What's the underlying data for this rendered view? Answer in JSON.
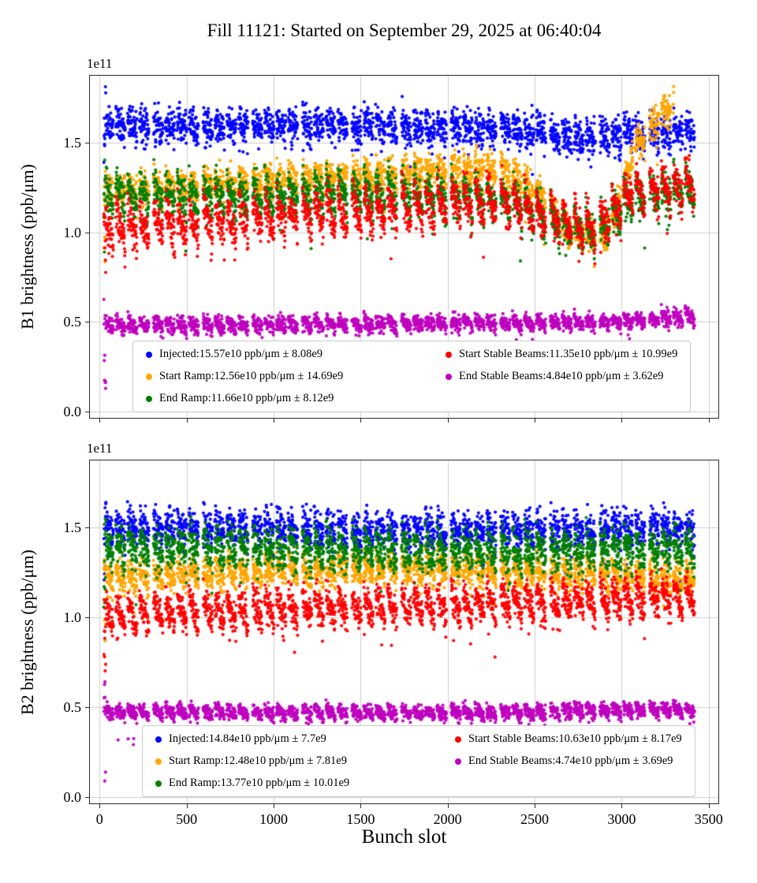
{
  "title": "Fill 11121: Started on September 29, 2025 at 06:40:04",
  "xlabel": "Bunch slot",
  "offset_text": "1e11",
  "chart_data": [
    {
      "type": "scatter",
      "name": "B1",
      "ylabel": "B1 brightness (ppb/μm)",
      "xlim": [
        -60,
        3560
      ],
      "ylim": [
        -0.04,
        1.88
      ],
      "x_ticks": [
        0,
        500,
        1000,
        1500,
        2000,
        2500,
        3000,
        3500
      ],
      "y_ticks": [
        0,
        0.5,
        1,
        1.5
      ],
      "show_x_tick_labels": false,
      "grid": true,
      "units_scale": "1e11",
      "trains": {
        "groups": 12,
        "group_start": 25,
        "group_pitch": 285,
        "subtrains": 4,
        "sub_pitch": 68,
        "bunches": 48,
        "slot_step": 1.15
      },
      "series": [
        {
          "name": "Injected",
          "label": "Injected:15.57e10 ppb/μm ± 8.08e9",
          "color": "#0000ff",
          "mean_e10": 15.57,
          "sigma_e9": 8.08,
          "profile": [
            [
              0,
              1.6
            ],
            [
              1000,
              1.6
            ],
            [
              2000,
              1.58
            ],
            [
              2500,
              1.57
            ],
            [
              2800,
              1.52
            ],
            [
              3000,
              1.55
            ],
            [
              3440,
              1.57
            ]
          ],
          "noise": 0.05,
          "saw": 0.05
        },
        {
          "name": "Start Ramp",
          "label": "Start Ramp:12.56e10 ppb/μm ± 14.69e9",
          "color": "#ffa500",
          "mean_e10": 12.56,
          "sigma_e9": 14.69,
          "x_max": 3300,
          "profile": [
            [
              0,
              1.22
            ],
            [
              600,
              1.27
            ],
            [
              1400,
              1.31
            ],
            [
              2300,
              1.36
            ],
            [
              2550,
              1.2
            ],
            [
              2700,
              1.0
            ],
            [
              2900,
              0.97
            ],
            [
              3000,
              1.2
            ],
            [
              3080,
              1.5
            ],
            [
              3290,
              1.72
            ]
          ],
          "noise": 0.045,
          "saw": 0.06
        },
        {
          "name": "End Ramp",
          "label": "End Ramp:11.66e10 ppb/μm ± 8.12e9",
          "color": "#008000",
          "mean_e10": 11.66,
          "sigma_e9": 8.12,
          "profile": [
            [
              0,
              1.22
            ],
            [
              800,
              1.2
            ],
            [
              1600,
              1.22
            ],
            [
              2400,
              1.18
            ],
            [
              2600,
              1.05
            ],
            [
              2850,
              1.0
            ],
            [
              3050,
              1.18
            ],
            [
              3440,
              1.25
            ]
          ],
          "noise": 0.05,
          "saw": 0.14
        },
        {
          "name": "Start Stable Beams",
          "label": "Start Stable Beams:11.35e10 ppb/μm ± 10.99e9",
          "color": "#ff0000",
          "mean_e10": 11.35,
          "sigma_e9": 10.99,
          "profile": [
            [
              0,
              1.02
            ],
            [
              700,
              1.07
            ],
            [
              1500,
              1.12
            ],
            [
              2300,
              1.18
            ],
            [
              2600,
              1.08
            ],
            [
              2850,
              1.02
            ],
            [
              3050,
              1.22
            ],
            [
              3440,
              1.27
            ]
          ],
          "noise": 0.05,
          "saw": 0.18
        },
        {
          "name": "End Stable Beams",
          "label": "End Stable Beams:4.84e10 ppb/μm ± 3.62e9",
          "color": "#bf00bf",
          "mean_e10": 4.84,
          "sigma_e9": 3.62,
          "profile": [
            [
              0,
              0.48
            ],
            [
              1500,
              0.49
            ],
            [
              3000,
              0.5
            ],
            [
              3440,
              0.53
            ]
          ],
          "noise": 0.022,
          "saw": 0.04
        }
      ]
    },
    {
      "type": "scatter",
      "name": "B2",
      "ylabel": "B2 brightness (ppb/μm)",
      "xlim": [
        -60,
        3560
      ],
      "ylim": [
        -0.04,
        1.88
      ],
      "x_ticks": [
        0,
        500,
        1000,
        1500,
        2000,
        2500,
        3000,
        3500
      ],
      "y_ticks": [
        0,
        0.5,
        1,
        1.5
      ],
      "show_x_tick_labels": true,
      "grid": true,
      "units_scale": "1e11",
      "trains": {
        "groups": 12,
        "group_start": 25,
        "group_pitch": 285,
        "subtrains": 4,
        "sub_pitch": 68,
        "bunches": 48,
        "slot_step": 1.15
      },
      "series": [
        {
          "name": "Injected",
          "label": "Injected:14.84e10 ppb/μm ± 7.7e9",
          "color": "#0000ff",
          "mean_e10": 14.84,
          "sigma_e9": 7.7,
          "profile": [
            [
              0,
              1.5
            ],
            [
              1000,
              1.5
            ],
            [
              2000,
              1.48
            ],
            [
              3440,
              1.5
            ]
          ],
          "noise": 0.05,
          "saw": 0.06
        },
        {
          "name": "Start Ramp",
          "label": "Start Ramp:12.48e10 ppb/μm ± 7.81e9",
          "color": "#ffa500",
          "mean_e10": 12.48,
          "sigma_e9": 7.81,
          "profile": [
            [
              0,
              1.22
            ],
            [
              1000,
              1.26
            ],
            [
              2000,
              1.27
            ],
            [
              3440,
              1.22
            ]
          ],
          "noise": 0.04,
          "saw": 0.08
        },
        {
          "name": "End Ramp",
          "label": "End Ramp:13.77e10 ppb/μm ± 10.01e9",
          "color": "#008000",
          "mean_e10": 13.77,
          "sigma_e9": 10.01,
          "profile": [
            [
              0,
              1.4
            ],
            [
              1000,
              1.38
            ],
            [
              2000,
              1.36
            ],
            [
              3440,
              1.38
            ]
          ],
          "noise": 0.055,
          "saw": 0.1
        },
        {
          "name": "Start Stable Beams",
          "label": "Start Stable Beams:10.63e10 ppb/μm ± 8.17e9",
          "color": "#ff0000",
          "mean_e10": 10.63,
          "sigma_e9": 8.17,
          "profile": [
            [
              0,
              1.02
            ],
            [
              700,
              1.04
            ],
            [
              1500,
              1.06
            ],
            [
              2500,
              1.08
            ],
            [
              3440,
              1.12
            ]
          ],
          "noise": 0.045,
          "saw": 0.14
        },
        {
          "name": "End Stable Beams",
          "label": "End Stable Beams:4.74e10 ppb/μm ± 3.69e9",
          "color": "#bf00bf",
          "mean_e10": 4.74,
          "sigma_e9": 3.69,
          "profile": [
            [
              0,
              0.475
            ],
            [
              2000,
              0.47
            ],
            [
              3440,
              0.49
            ]
          ],
          "noise": 0.02,
          "saw": 0.04
        }
      ]
    }
  ]
}
